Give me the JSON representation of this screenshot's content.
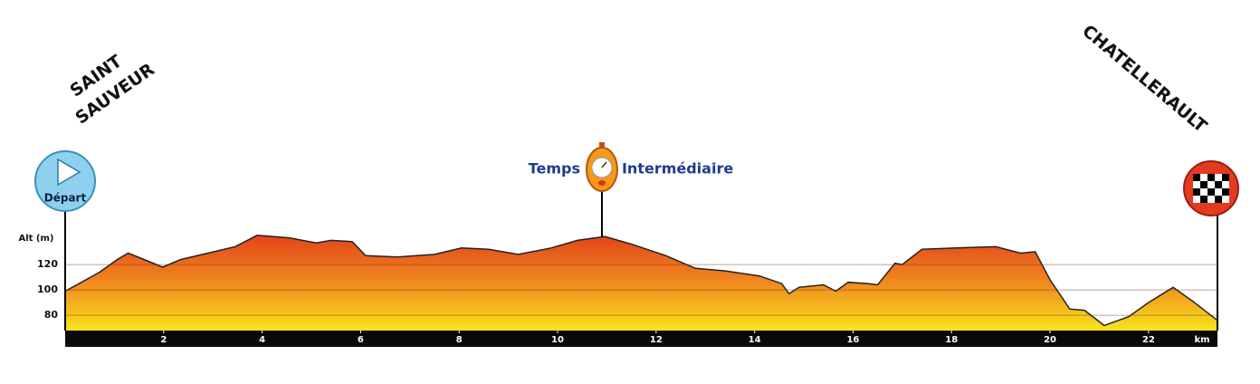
{
  "chart_data": {
    "type": "area",
    "y_label": "Alt (m)",
    "x_label": "km",
    "x": [
      0,
      0.33,
      0.7,
      1.06,
      1.28,
      1.6,
      1.98,
      2.35,
      2.9,
      3.45,
      3.9,
      4.55,
      5.1,
      5.4,
      5.83,
      6.1,
      6.75,
      7.5,
      8.05,
      8.6,
      9.2,
      9.87,
      10.4,
      10.96,
      11.5,
      12.2,
      12.8,
      13.4,
      14.1,
      14.55,
      14.7,
      14.9,
      15.4,
      15.65,
      15.9,
      16.3,
      16.5,
      16.85,
      17.0,
      17.4,
      18.1,
      18.9,
      19.4,
      19.7,
      20.0,
      20.4,
      20.7,
      21.1,
      21.6,
      22.0,
      22.5,
      22.9,
      23.4
    ],
    "values": [
      99,
      106,
      114,
      124,
      129,
      124,
      118,
      124,
      129,
      134,
      143,
      141,
      137,
      139,
      138,
      127,
      126,
      128,
      133,
      132,
      128,
      133,
      139,
      142,
      136,
      127,
      117,
      115,
      111,
      105,
      97,
      102,
      104,
      99,
      106,
      105,
      104,
      121,
      120,
      132,
      133,
      134,
      129,
      130,
      108,
      85,
      84,
      72,
      79,
      90,
      102,
      91,
      76
    ],
    "xlim": [
      0,
      23.4
    ],
    "ylim": [
      68,
      150
    ],
    "xticks": [
      2,
      4,
      6,
      8,
      10,
      12,
      14,
      16,
      18,
      20,
      22
    ],
    "yticks": [
      80,
      100,
      120
    ],
    "grid": true,
    "fill_colors": [
      "#e2441a",
      "#f08a1e",
      "#f8e41c"
    ],
    "start": {
      "names": [
        "SAINT",
        "SAUVEUR"
      ],
      "marker": "Départ"
    },
    "finish": {
      "name": "CHATELLERAULT"
    },
    "checkpoint": {
      "x": 10.9,
      "labels": [
        "Temps",
        "Intermédiaire"
      ]
    }
  }
}
